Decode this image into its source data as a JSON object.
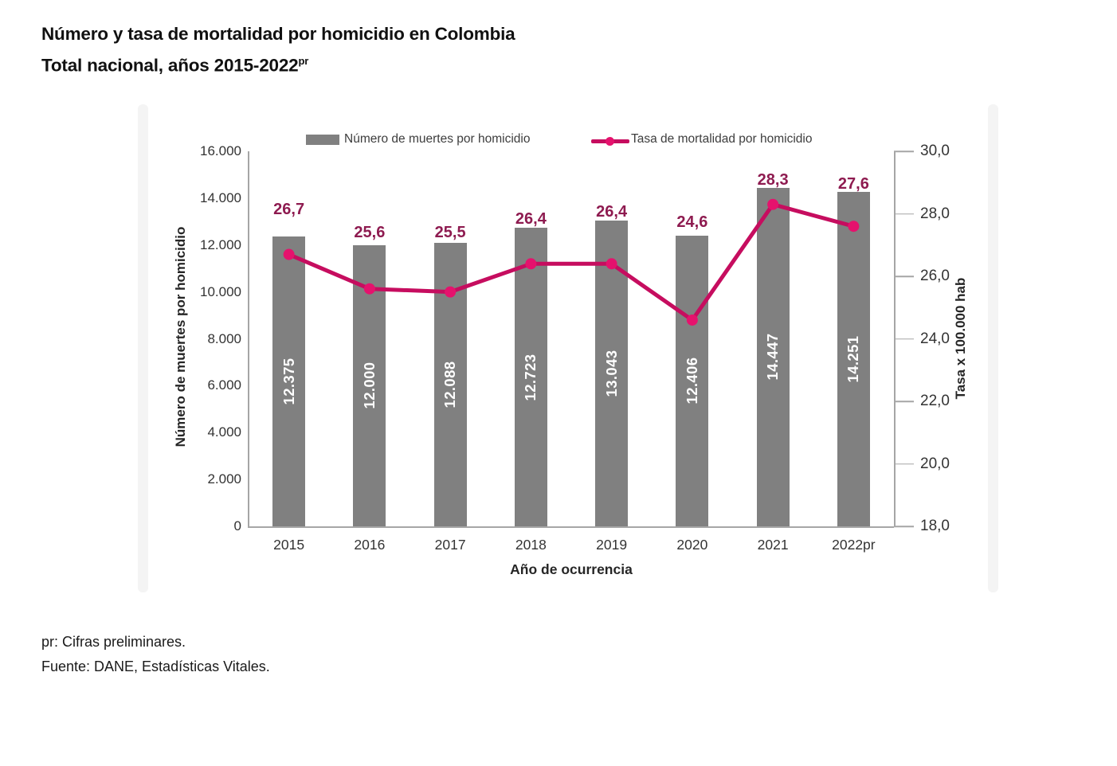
{
  "title": {
    "line1": "Número y tasa de mortalidad por homicidio en Colombia",
    "line2": "Total nacional, años 2015-2022",
    "line2_superscript": "pr"
  },
  "chart_data": {
    "type": "bar+line",
    "categories": [
      "2015",
      "2016",
      "2017",
      "2018",
      "2019",
      "2020",
      "2021",
      "2022pr"
    ],
    "series": [
      {
        "name": "Número de muertes por homicidio",
        "type": "bar",
        "axis": "left",
        "values": [
          12375,
          12000,
          12088,
          12723,
          13043,
          12406,
          14447,
          14251
        ],
        "labels": [
          "12.375",
          "12.000",
          "12.088",
          "12.723",
          "13.043",
          "12.406",
          "14.447",
          "14.251"
        ]
      },
      {
        "name": "Tasa de mortalidad por homicidio",
        "type": "line",
        "axis": "right",
        "values": [
          26.7,
          25.6,
          25.5,
          26.4,
          26.4,
          24.6,
          28.3,
          27.6
        ],
        "labels": [
          "26,7",
          "25,6",
          "25,5",
          "26,4",
          "26,4",
          "24,6",
          "28,3",
          "27,6"
        ]
      }
    ],
    "xlabel": "Año de ocurrencia",
    "ylabel_left": "Número de muertes por homicidio",
    "ylabel_right": "Tasa x 100.000 hab",
    "axis_left": {
      "min": 0,
      "max": 16000,
      "step": 2000,
      "tick_labels": [
        "0",
        "2.000",
        "4.000",
        "6.000",
        "8.000",
        "10.000",
        "12.000",
        "14.000",
        "16.000"
      ]
    },
    "axis_right": {
      "min": 18,
      "max": 30,
      "step": 2,
      "tick_labels": [
        "18,0",
        "20,0",
        "22,0",
        "24,0",
        "26,0",
        "28,0",
        "30,0"
      ]
    },
    "grid": false,
    "legend_position": "top"
  },
  "colors": {
    "bar": "#808080",
    "line": "#C60D5F",
    "marker": "#E5126D",
    "rate_label": "#8E1B50",
    "bar_value_label": "#FFFFFF",
    "axis_line": "#A6A6A6",
    "tick_text": "#333333",
    "legend_text": "#3D3D3D",
    "title_text": "#111111"
  },
  "footer": {
    "line1": "pr: Cifras preliminares.",
    "line2": "Fuente: DANE, Estadísticas Vitales."
  }
}
